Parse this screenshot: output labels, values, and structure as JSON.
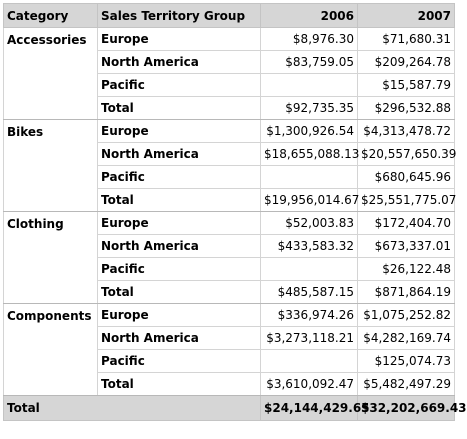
{
  "header": {
    "category": "Category",
    "territory": "Sales Territory Group",
    "years": [
      "2006",
      "2007"
    ]
  },
  "groups": [
    {
      "category": "Accessories",
      "rows": [
        {
          "territory": "Europe",
          "y2006": "$8,976.30",
          "y2007": "$71,680.31"
        },
        {
          "territory": "North America",
          "y2006": "$83,759.05",
          "y2007": "$209,264.78"
        },
        {
          "territory": "Pacific",
          "y2006": "",
          "y2007": "$15,587.79"
        },
        {
          "territory": "Total",
          "y2006": "$92,735.35",
          "y2007": "$296,532.88"
        }
      ]
    },
    {
      "category": "Bikes",
      "rows": [
        {
          "territory": "Europe",
          "y2006": "$1,300,926.54",
          "y2007": "$4,313,478.72"
        },
        {
          "territory": "North America",
          "y2006": "$18,655,088.13",
          "y2007": "$20,557,650.39"
        },
        {
          "territory": "Pacific",
          "y2006": "",
          "y2007": "$680,645.96"
        },
        {
          "territory": "Total",
          "y2006": "$19,956,014.67",
          "y2007": "$25,551,775.07"
        }
      ]
    },
    {
      "category": "Clothing",
      "rows": [
        {
          "territory": "Europe",
          "y2006": "$52,003.83",
          "y2007": "$172,404.70"
        },
        {
          "territory": "North America",
          "y2006": "$433,583.32",
          "y2007": "$673,337.01"
        },
        {
          "territory": "Pacific",
          "y2006": "",
          "y2007": "$26,122.48"
        },
        {
          "territory": "Total",
          "y2006": "$485,587.15",
          "y2007": "$871,864.19"
        }
      ]
    },
    {
      "category": "Components",
      "rows": [
        {
          "territory": "Europe",
          "y2006": "$336,974.26",
          "y2007": "$1,075,252.82"
        },
        {
          "territory": "North America",
          "y2006": "$3,273,118.21",
          "y2007": "$4,282,169.74"
        },
        {
          "territory": "Pacific",
          "y2006": "",
          "y2007": "$125,074.73"
        },
        {
          "territory": "Total",
          "y2006": "$3,610,092.47",
          "y2007": "$5,482,497.29"
        }
      ]
    }
  ],
  "grand_total": {
    "label": "Total",
    "y2006": "$24,144,429.65",
    "y2007": "$32,202,669.43"
  },
  "colors": {
    "header_bg": "#d6d6d6",
    "grid": "#d4d4d4"
  }
}
